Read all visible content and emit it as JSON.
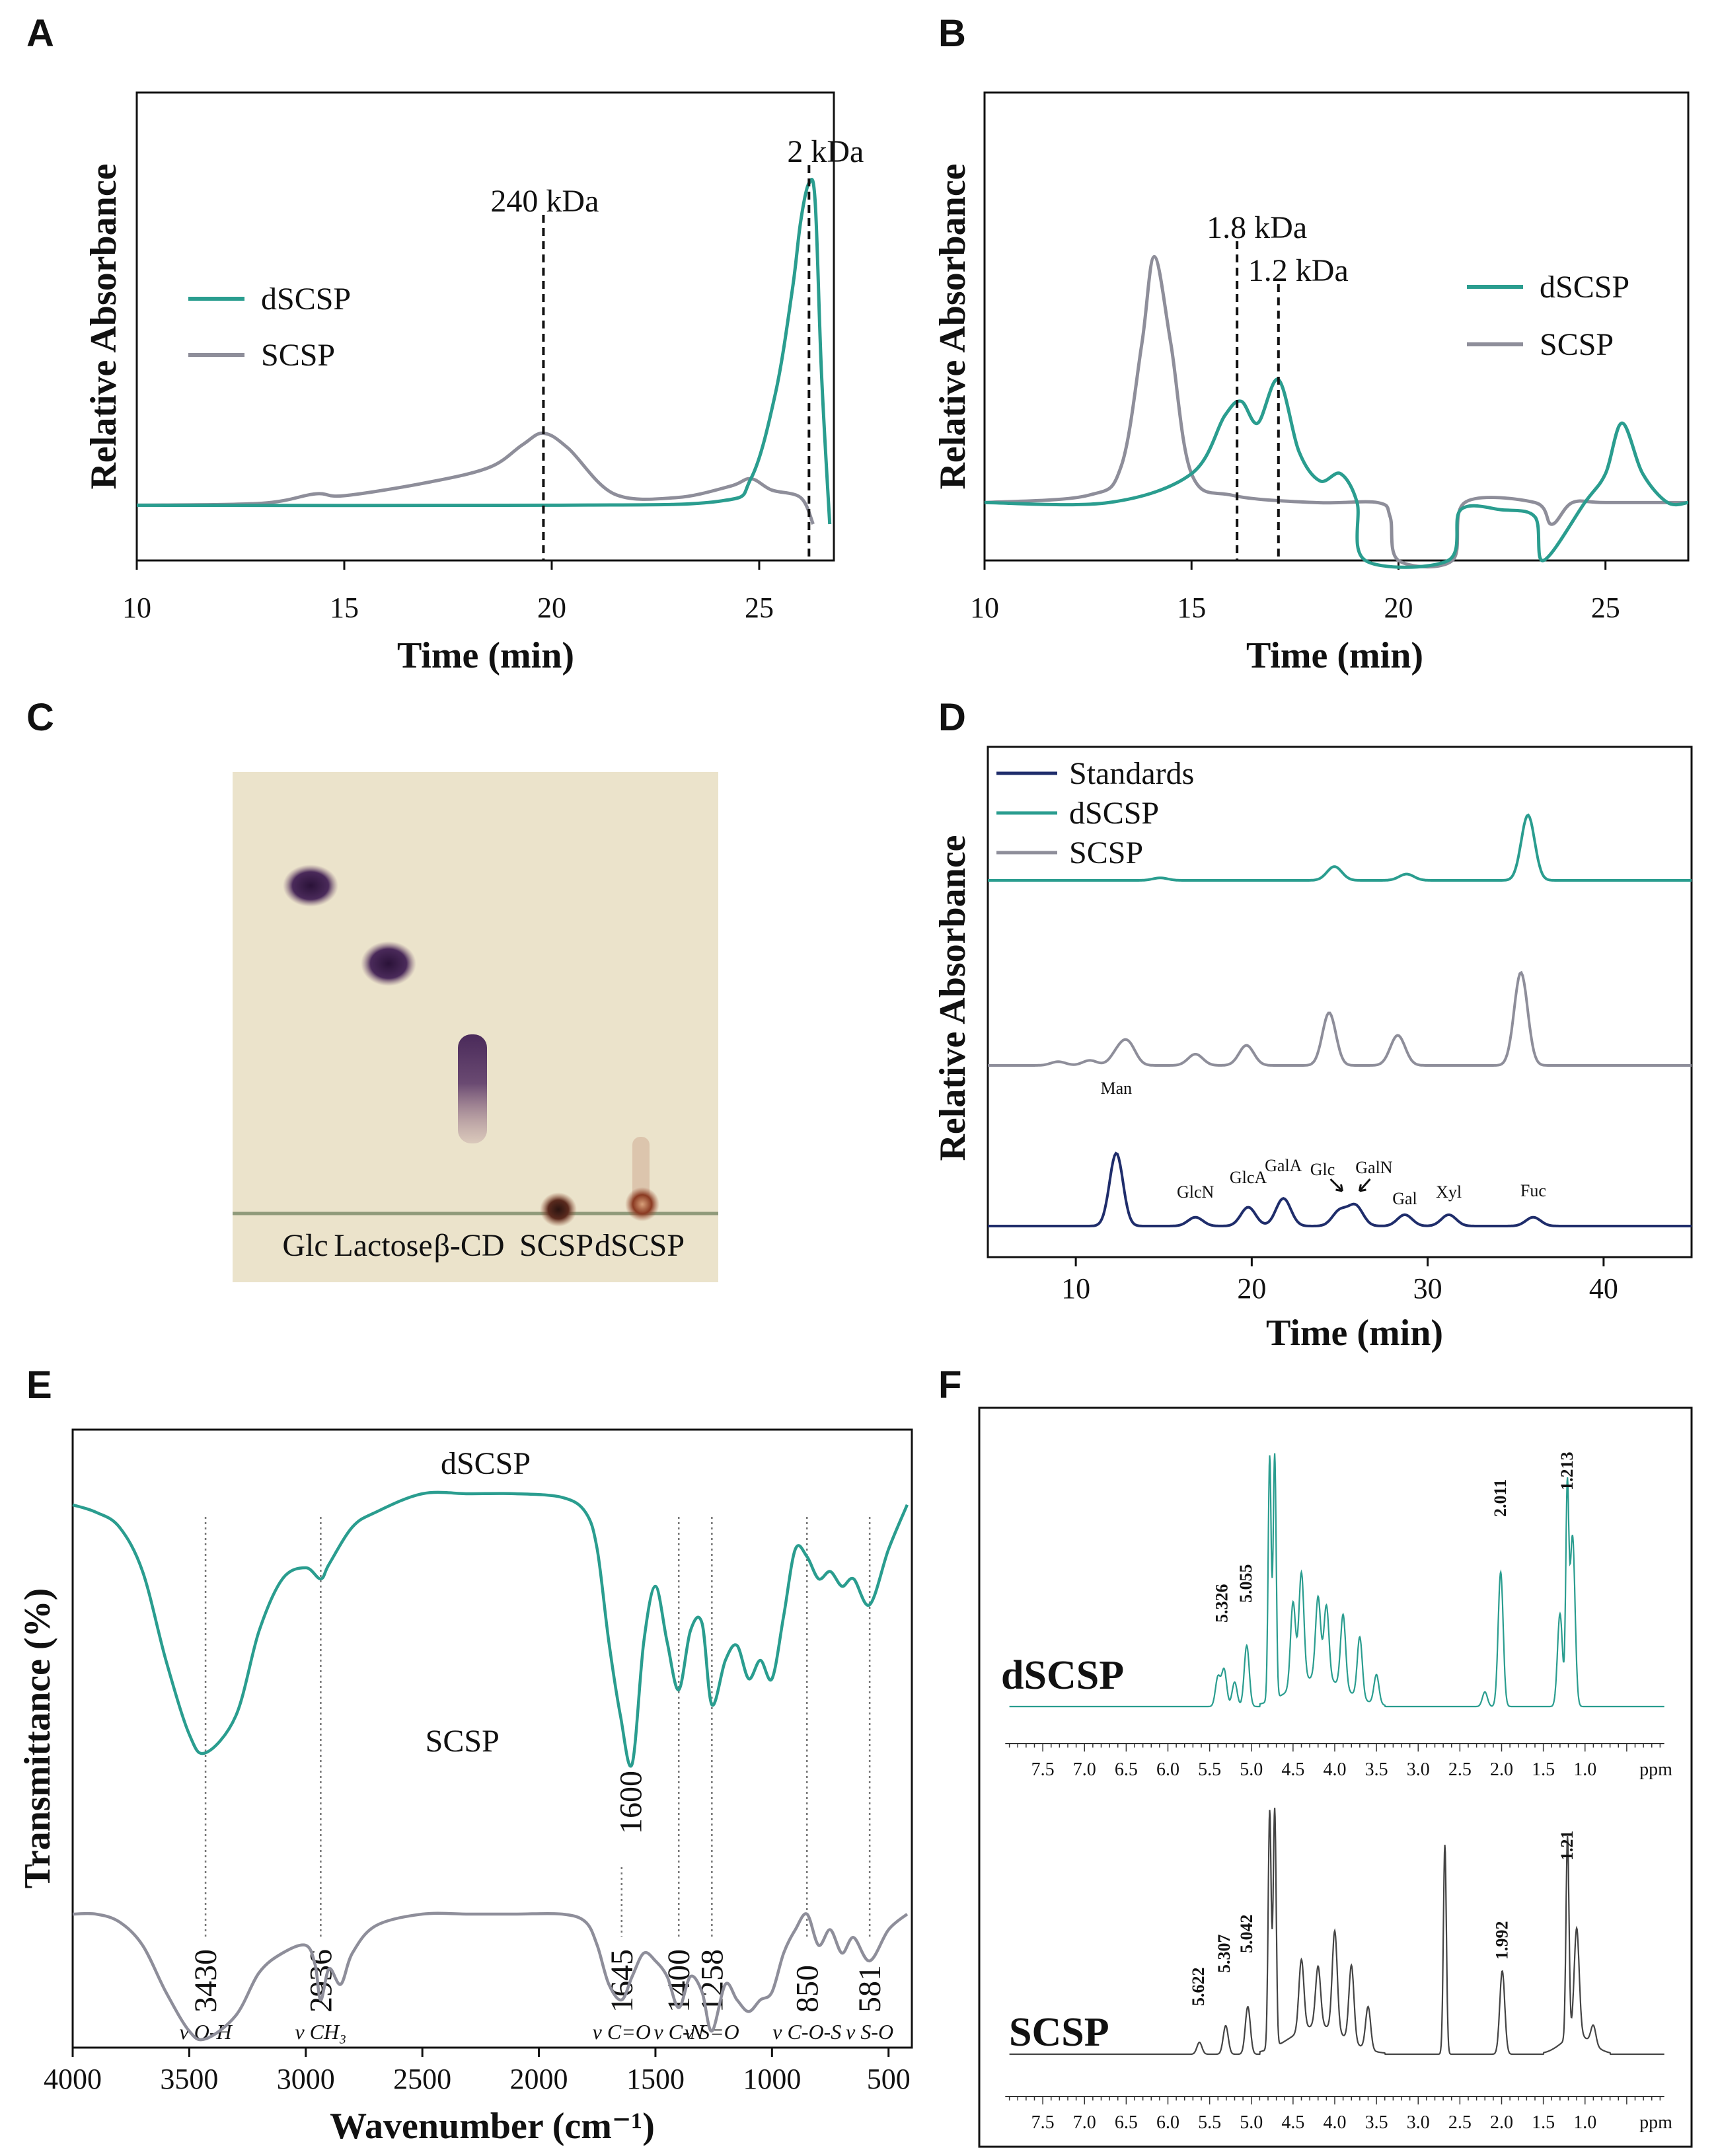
{
  "colors": {
    "dSCSP": "#2a9d8f",
    "SCSP": "#8e8e9a",
    "Standards": "#1f2d6b",
    "dashed": "#111111"
  },
  "chart_data": [
    {
      "panel": "A",
      "type": "line",
      "xlabel": "Time (min)",
      "ylabel": "Relative Absorbance",
      "xlim": [
        10,
        26.8
      ],
      "xticks": [
        10,
        15,
        20,
        25
      ],
      "annotations": [
        {
          "text": "240 kDa",
          "x": 19.8
        },
        {
          "text": "2 kDa",
          "x": 26.2
        }
      ],
      "legend": [
        {
          "name": "dSCSP",
          "color_key": "dSCSP"
        },
        {
          "name": "SCSP",
          "color_key": "SCSP"
        }
      ],
      "series": [
        {
          "name": "dSCSP",
          "x": [
            10,
            20,
            24,
            24.8,
            25.4,
            25.8,
            26.0,
            26.2,
            26.35,
            26.5,
            26.7
          ],
          "y": [
            0.05,
            0.05,
            0.06,
            0.12,
            0.35,
            0.62,
            0.8,
            0.9,
            0.85,
            0.4,
            0.0
          ]
        },
        {
          "name": "SCSP",
          "x": [
            10,
            13,
            14.3,
            15,
            17,
            18.5,
            19.3,
            19.8,
            20.4,
            21.5,
            23,
            24.3,
            24.8,
            25.3,
            26.0,
            26.3
          ],
          "y": [
            0.05,
            0.055,
            0.08,
            0.075,
            0.11,
            0.15,
            0.21,
            0.24,
            0.2,
            0.08,
            0.07,
            0.1,
            0.12,
            0.09,
            0.07,
            0.0
          ]
        }
      ]
    },
    {
      "panel": "B",
      "type": "line",
      "xlabel": "Time (min)",
      "ylabel": "Relative Absorbance",
      "xlim": [
        10,
        27
      ],
      "xticks": [
        10,
        15,
        20,
        25
      ],
      "annotations": [
        {
          "text": "1.8 kDa",
          "x": 16.1
        },
        {
          "text": "1.2 kDa",
          "x": 17.1
        }
      ],
      "legend": [
        {
          "name": "dSCSP",
          "color_key": "dSCSP"
        },
        {
          "name": "SCSP",
          "color_key": "SCSP"
        }
      ],
      "series": [
        {
          "name": "dSCSP",
          "x": [
            10,
            13,
            15,
            15.8,
            16.2,
            16.6,
            17.1,
            17.6,
            18.1,
            18.6,
            19.0,
            19.2,
            21.2,
            21.5,
            22.5,
            23.3,
            23.5,
            24.5,
            25.0,
            25.4,
            25.9,
            26.5,
            27
          ],
          "y": [
            0.08,
            0.08,
            0.12,
            0.2,
            0.22,
            0.19,
            0.25,
            0.15,
            0.11,
            0.12,
            0.08,
            0.0,
            0.0,
            0.07,
            0.07,
            0.06,
            0.0,
            0.08,
            0.12,
            0.19,
            0.12,
            0.08,
            0.08
          ]
        },
        {
          "name": "SCSP",
          "x": [
            10,
            12.5,
            13.3,
            13.8,
            14.1,
            14.5,
            15.0,
            16,
            18,
            19.5,
            19.8,
            20.0,
            21.3,
            21.6,
            23.3,
            23.7,
            24.2,
            25,
            27
          ],
          "y": [
            0.08,
            0.09,
            0.13,
            0.3,
            0.42,
            0.3,
            0.12,
            0.09,
            0.08,
            0.08,
            0.06,
            0.0,
            0.0,
            0.08,
            0.08,
            0.05,
            0.08,
            0.08,
            0.08
          ]
        }
      ]
    },
    {
      "panel": "C",
      "type": "image",
      "lane_labels": [
        "Glc",
        "Lactose",
        "β-CD",
        "SCSP",
        "dSCSP"
      ]
    },
    {
      "panel": "D",
      "type": "line",
      "xlabel": "Time (min)",
      "ylabel": "Relative Absorbance",
      "xlim": [
        5,
        45
      ],
      "xticks": [
        10,
        20,
        30,
        40
      ],
      "legend": [
        {
          "name": "Standards",
          "color_key": "Standards"
        },
        {
          "name": "dSCSP",
          "color_key": "dSCSP"
        },
        {
          "name": "SCSP",
          "color_key": "SCSP"
        }
      ],
      "peak_labels": [
        {
          "text": "Man",
          "x": 12.3
        },
        {
          "text": "GlcN",
          "x": 16.8
        },
        {
          "text": "GlcA",
          "x": 19.8
        },
        {
          "text": "GalA",
          "x": 21.8
        },
        {
          "text": "Glc",
          "x": 24.7
        },
        {
          "text": "GalN",
          "x": 26.5
        },
        {
          "text": "Gal",
          "x": 28.7
        },
        {
          "text": "Xyl",
          "x": 31.2
        },
        {
          "text": "Fuc",
          "x": 36.0
        }
      ],
      "series": [
        {
          "name": "dSCSP",
          "peaks": [
            [
              14.8,
              0.1
            ],
            [
              24.7,
              0.55
            ],
            [
              28.8,
              0.25
            ],
            [
              35.7,
              2.6
            ]
          ]
        },
        {
          "name": "SCSP",
          "peaks": [
            [
              9,
              0.15
            ],
            [
              10.8,
              0.2
            ],
            [
              12.4,
              0.5
            ],
            [
              13.0,
              0.8
            ],
            [
              16.8,
              0.45
            ],
            [
              19.7,
              0.8
            ],
            [
              24.4,
              2.1
            ],
            [
              28.3,
              1.2
            ],
            [
              35.3,
              3.7
            ]
          ]
        },
        {
          "name": "Standards",
          "peaks": [
            [
              12.3,
              2.9
            ],
            [
              16.8,
              0.35
            ],
            [
              19.8,
              0.75
            ],
            [
              21.8,
              1.1
            ],
            [
              25.0,
              0.6
            ],
            [
              25.9,
              0.8
            ],
            [
              28.7,
              0.45
            ],
            [
              31.2,
              0.45
            ],
            [
              36.0,
              0.35
            ]
          ]
        }
      ]
    },
    {
      "panel": "E",
      "type": "line",
      "xlabel": "Wavenumber (cm⁻¹)",
      "ylabel": "Transmittance (%)",
      "xlim": [
        4000,
        400
      ],
      "xticks": [
        4000,
        3500,
        3000,
        2500,
        2000,
        1500,
        1000,
        500
      ],
      "series_labels": [
        {
          "name": "dSCSP",
          "x": 2200
        },
        {
          "name": "SCSP",
          "x": 2300
        }
      ],
      "band_marks": [
        {
          "value": "3430",
          "assign": "v O-H"
        },
        {
          "value": "2936",
          "assign": "v CH₃"
        },
        {
          "value": "1645",
          "assign": "v C=O"
        },
        {
          "value": "1400",
          "assign": "v C-N"
        },
        {
          "value": "1258",
          "assign": "v S=O"
        },
        {
          "value": "850",
          "assign": "v C-O-S"
        },
        {
          "value": "581",
          "assign": "v S-O"
        },
        {
          "value": "1600",
          "assign": ""
        }
      ],
      "series": [
        {
          "name": "dSCSP",
          "x": [
            4000,
            3900,
            3800,
            3700,
            3600,
            3500,
            3430,
            3300,
            3200,
            3100,
            3000,
            2936,
            2900,
            2800,
            2700,
            2500,
            2300,
            2100,
            1900,
            1800,
            1750,
            1700,
            1650,
            1600,
            1550,
            1500,
            1450,
            1400,
            1350,
            1300,
            1258,
            1200,
            1150,
            1100,
            1050,
            1000,
            950,
            900,
            850,
            800,
            750,
            700,
            650,
            581,
            500,
            420
          ],
          "y": [
            0.92,
            0.9,
            0.86,
            0.74,
            0.5,
            0.3,
            0.25,
            0.35,
            0.58,
            0.72,
            0.75,
            0.72,
            0.76,
            0.86,
            0.9,
            0.95,
            0.95,
            0.95,
            0.94,
            0.9,
            0.8,
            0.55,
            0.35,
            0.22,
            0.55,
            0.7,
            0.55,
            0.42,
            0.58,
            0.6,
            0.38,
            0.5,
            0.54,
            0.45,
            0.5,
            0.45,
            0.62,
            0.8,
            0.78,
            0.72,
            0.74,
            0.7,
            0.72,
            0.65,
            0.8,
            0.92
          ]
        },
        {
          "name": "SCSP",
          "x": [
            4000,
            3900,
            3800,
            3700,
            3600,
            3500,
            3430,
            3300,
            3200,
            3100,
            3000,
            2960,
            2936,
            2900,
            2850,
            2800,
            2700,
            2500,
            2300,
            2100,
            1900,
            1800,
            1750,
            1700,
            1645,
            1600,
            1550,
            1500,
            1450,
            1400,
            1350,
            1300,
            1258,
            1200,
            1150,
            1100,
            1050,
            1000,
            950,
            900,
            850,
            800,
            750,
            700,
            650,
            581,
            500,
            420
          ],
          "y": [
            0.6,
            0.6,
            0.58,
            0.52,
            0.4,
            0.3,
            0.28,
            0.34,
            0.45,
            0.5,
            0.52,
            0.47,
            0.38,
            0.46,
            0.42,
            0.5,
            0.57,
            0.6,
            0.6,
            0.6,
            0.6,
            0.58,
            0.52,
            0.42,
            0.38,
            0.44,
            0.5,
            0.48,
            0.44,
            0.36,
            0.44,
            0.4,
            0.3,
            0.42,
            0.38,
            0.35,
            0.38,
            0.4,
            0.5,
            0.56,
            0.6,
            0.52,
            0.56,
            0.5,
            0.54,
            0.48,
            0.56,
            0.6
          ]
        }
      ]
    },
    {
      "panel": "F",
      "type": "line",
      "xlabel": "ppm",
      "xlim": [
        8.0,
        0.0
      ],
      "xticks": [
        7.5,
        7.0,
        6.5,
        6.0,
        5.5,
        5.0,
        4.5,
        4.0,
        3.5,
        3.0,
        2.5,
        2.0,
        1.5,
        1.0
      ],
      "series": [
        {
          "name": "dSCSP",
          "peak_labels": [
            "5.326",
            "5.055",
            "2.011",
            "1.213"
          ],
          "peaks": [
            [
              5.4,
              0.12
            ],
            [
              5.326,
              0.15
            ],
            [
              5.2,
              0.1
            ],
            [
              5.055,
              0.25
            ],
            [
              4.78,
              1.0
            ],
            [
              4.72,
              1.0
            ],
            [
              4.5,
              0.35
            ],
            [
              4.4,
              0.45
            ],
            [
              4.2,
              0.33
            ],
            [
              4.1,
              0.3
            ],
            [
              3.9,
              0.3
            ],
            [
              3.7,
              0.25
            ],
            [
              3.5,
              0.12
            ],
            [
              2.2,
              0.06
            ],
            [
              2.011,
              0.55
            ],
            [
              1.3,
              0.38
            ],
            [
              1.213,
              0.85
            ],
            [
              1.15,
              0.7
            ]
          ]
        },
        {
          "name": "SCSP",
          "peak_labels": [
            "5.622",
            "5.307",
            "5.042",
            "1.992",
            "1.21"
          ],
          "peaks": [
            [
              5.622,
              0.05
            ],
            [
              5.307,
              0.12
            ],
            [
              5.042,
              0.2
            ],
            [
              4.78,
              1.0
            ],
            [
              4.72,
              1.0
            ],
            [
              4.4,
              0.3
            ],
            [
              4.2,
              0.25
            ],
            [
              4.0,
              0.42
            ],
            [
              3.8,
              0.32
            ],
            [
              3.6,
              0.18
            ],
            [
              2.68,
              0.88
            ],
            [
              1.992,
              0.35
            ],
            [
              1.21,
              0.85
            ],
            [
              1.1,
              0.45
            ],
            [
              0.9,
              0.08
            ]
          ]
        }
      ]
    }
  ]
}
